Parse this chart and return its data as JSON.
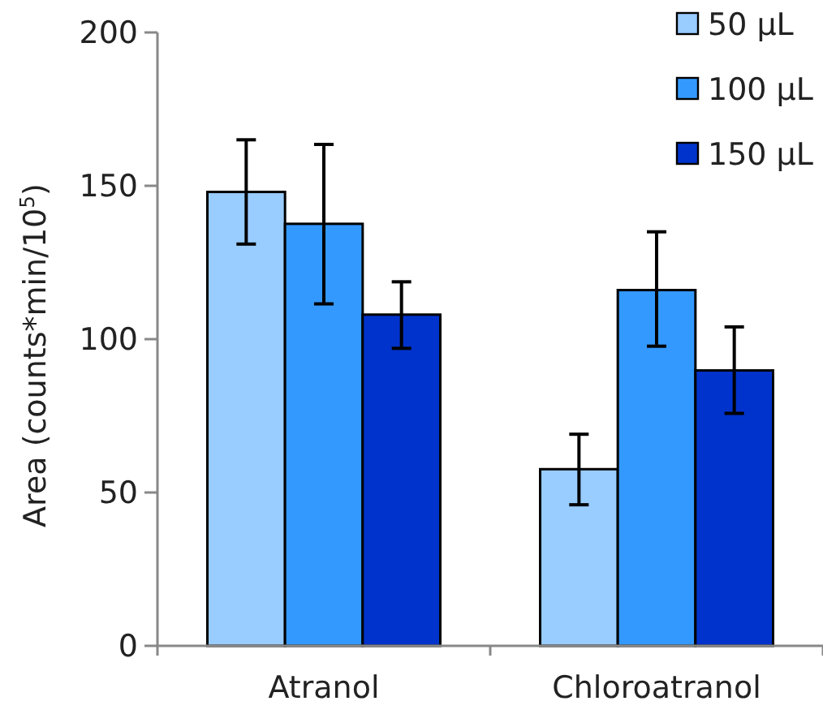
{
  "chart_data": {
    "type": "bar",
    "ylabel": "Area (counts*min/10$^{5}$)",
    "categories": [
      "Atranol",
      "Chloroatranol"
    ],
    "series": [
      {
        "name": "50 µL",
        "color": "#99ccff",
        "values": [
          148,
          57.6
        ],
        "errors": [
          [
            131,
            165
          ],
          [
            46,
            69
          ]
        ]
      },
      {
        "name": "100 µL",
        "color": "#3399ff",
        "values": [
          137.6,
          116
        ],
        "errors": [
          [
            111.5,
            163.5
          ],
          [
            97.7,
            135
          ]
        ]
      },
      {
        "name": "150 µL",
        "color": "#0033cc",
        "values": [
          108,
          89.8
        ],
        "errors": [
          [
            97,
            118.7
          ],
          [
            75.8,
            104
          ]
        ]
      }
    ],
    "ylim": [
      0,
      200
    ],
    "yticks": [
      0,
      50,
      100,
      150,
      200
    ],
    "grid": false,
    "legend": "top right"
  }
}
